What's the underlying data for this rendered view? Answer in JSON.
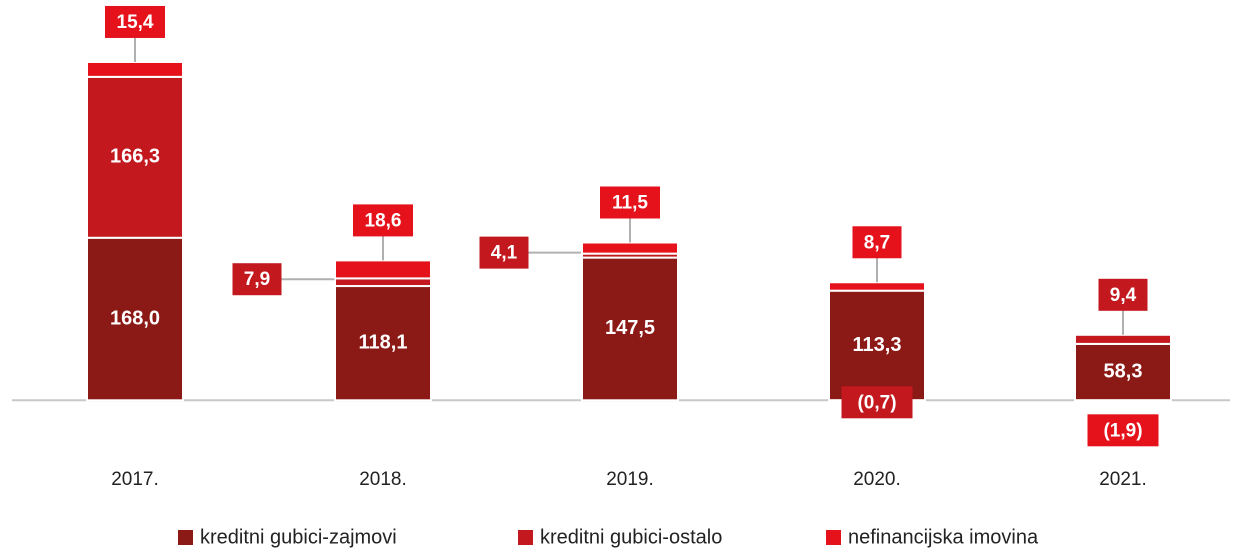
{
  "chart_data": {
    "type": "stacked_bar",
    "categories": [
      "2017.",
      "2018.",
      "2019.",
      "2020.",
      "2021."
    ],
    "series": [
      {
        "name": "kreditni gubici-zajmovi",
        "color": "#8b1a16",
        "values": [
          168.0,
          118.1,
          147.5,
          113.3,
          58.3
        ],
        "value_labels": [
          "168,0",
          "118,1",
          "147,5",
          "113,3",
          "58,3"
        ]
      },
      {
        "name": "kreditni gubici-ostalo",
        "color": "#c2181e",
        "values": [
          166.3,
          7.9,
          4.1,
          -0.7,
          9.4
        ],
        "value_labels": [
          "166,3",
          "7,9",
          "4,1",
          "(0,7)",
          "9,4"
        ]
      },
      {
        "name": "nefinancijska imovina",
        "color": "#e5121c",
        "values": [
          15.4,
          18.6,
          11.5,
          8.7,
          -1.9
        ],
        "value_labels": [
          "15,4",
          "18,6",
          "11,5",
          "8,7",
          "(1,9)"
        ]
      }
    ],
    "ylim": [
      -40,
      360
    ]
  }
}
